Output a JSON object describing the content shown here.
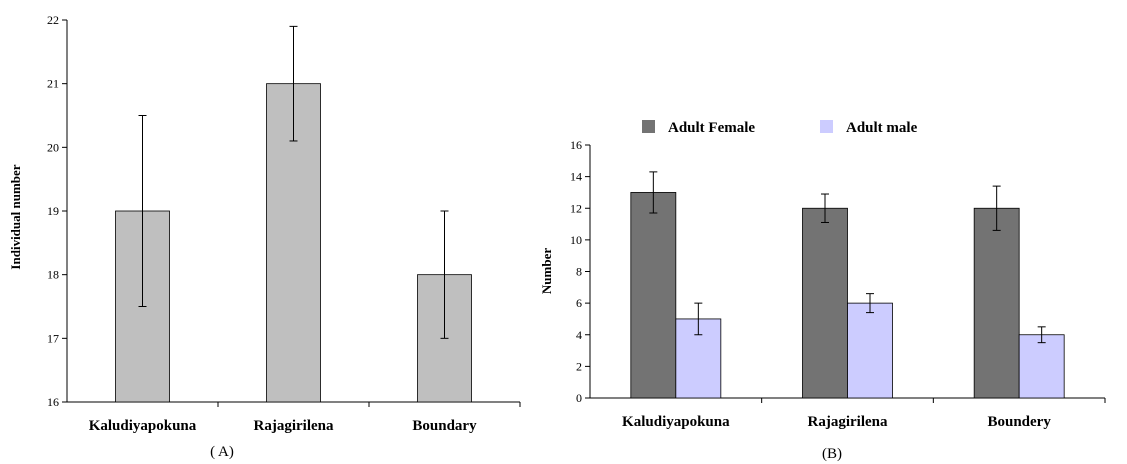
{
  "chart_data": [
    {
      "type": "bar",
      "panel_label": "( A)",
      "ylabel": "Individual number",
      "xlabel": "",
      "ylim": [
        16,
        22
      ],
      "yticks": [
        "16",
        "17",
        "18",
        "19",
        "20",
        "21",
        "22"
      ],
      "categories": [
        "Kaludiyapokuna",
        "Rajagirilena",
        "Boundary"
      ],
      "series": [
        {
          "values": [
            19,
            21,
            18
          ],
          "errors": [
            1.5,
            0.9,
            1.0
          ],
          "color": "#bfbfbf"
        }
      ]
    },
    {
      "type": "bar",
      "panel_label": "(B)",
      "ylabel": "Number",
      "xlabel": "",
      "ylim": [
        0,
        16
      ],
      "yticks": [
        "0",
        "2",
        "4",
        "6",
        "8",
        "10",
        "12",
        "14",
        "16"
      ],
      "legend_position": "top",
      "categories": [
        "Kaludiyapokuna",
        "Rajagirilena",
        "Boundery"
      ],
      "series": [
        {
          "name": "Adult Female",
          "values": [
            13,
            12,
            12
          ],
          "errors": [
            1.3,
            0.9,
            1.4
          ],
          "color": "#737373"
        },
        {
          "name": "Adult male",
          "values": [
            5,
            6,
            4
          ],
          "errors": [
            1.0,
            0.6,
            0.5
          ],
          "color": "#ccccff"
        }
      ]
    }
  ]
}
